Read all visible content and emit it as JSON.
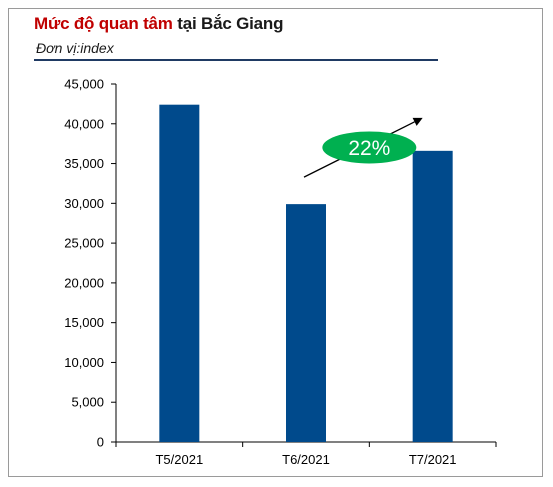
{
  "header": {
    "title_red": "Mức độ quan tâm",
    "title_rest": "tại Bắc Giang",
    "unit": "Đơn vị:index"
  },
  "colors": {
    "bar": "#004a8c",
    "badge": "#00b050",
    "title_accent": "#c00000"
  },
  "chart_data": {
    "type": "bar",
    "title": "Mức độ quan tâm tại Bắc Giang",
    "ylabel": "Đơn vị:index",
    "categories": [
      "T5/2021",
      "T6/2021",
      "T7/2021"
    ],
    "values": [
      42400,
      29900,
      36600
    ],
    "ylim": [
      0,
      45000
    ],
    "yticks": [
      0,
      5000,
      10000,
      15000,
      20000,
      25000,
      30000,
      35000,
      40000,
      45000
    ],
    "ytick_labels": [
      "0",
      "5,000",
      "10,000",
      "15,000",
      "20,000",
      "25,000",
      "30,000",
      "35,000",
      "40,000",
      "45,000"
    ],
    "grid": false,
    "legend": "none",
    "annotations": [
      {
        "text": "22%",
        "from": "T6/2021",
        "to": "T7/2021",
        "shape": "arrow-with-badge",
        "icon": "trend-up-arrow-icon"
      }
    ]
  }
}
